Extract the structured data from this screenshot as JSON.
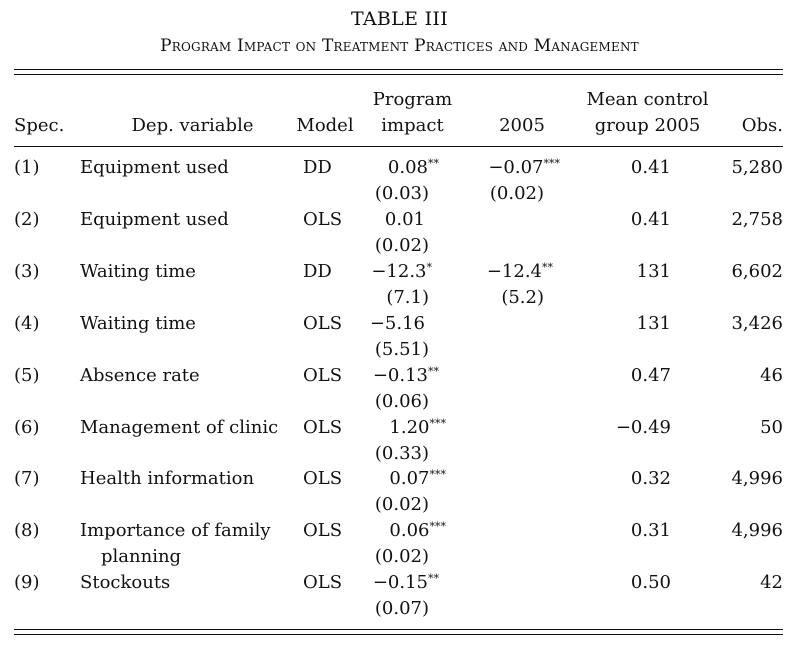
{
  "table": {
    "title": "TABLE III",
    "subtitle": "Program Impact on Treatment Practices and Management",
    "headers": {
      "spec": "Spec.",
      "dep_variable": "Dep. variable",
      "model": "Model",
      "program_line1": "Program",
      "program_line2": "impact",
      "col_2005": "2005",
      "mean_line1": "Mean control",
      "mean_line2": "group 2005",
      "obs": "Obs."
    },
    "rows": [
      {
        "spec": "(1)",
        "dep": "Equipment used",
        "dep2": "",
        "model": "DD",
        "impact": "0.08",
        "impact_stars": "**",
        "impact_se": "(0.03)",
        "c2005": "−0.07",
        "c2005_stars": "***",
        "c2005_se": "(0.02)",
        "mean": "0.41",
        "obs": "5,280"
      },
      {
        "spec": "(2)",
        "dep": "Equipment used",
        "dep2": "",
        "model": "OLS",
        "impact": "0.01",
        "impact_stars": "",
        "impact_se": "(0.02)",
        "c2005": "",
        "c2005_stars": "",
        "c2005_se": "",
        "mean": "0.41",
        "obs": "2,758"
      },
      {
        "spec": "(3)",
        "dep": "Waiting time",
        "dep2": "",
        "model": "DD",
        "impact": "−12.3",
        "impact_stars": "*",
        "impact_se": "(7.1)",
        "c2005": "−12.4",
        "c2005_stars": "**",
        "c2005_se": "(5.2)",
        "mean": "131",
        "obs": "6,602"
      },
      {
        "spec": "(4)",
        "dep": "Waiting time",
        "dep2": "",
        "model": "OLS",
        "impact": "−5.16",
        "impact_stars": "",
        "impact_se": "(5.51)",
        "c2005": "",
        "c2005_stars": "",
        "c2005_se": "",
        "mean": "131",
        "obs": "3,426"
      },
      {
        "spec": "(5)",
        "dep": "Absence rate",
        "dep2": "",
        "model": "OLS",
        "impact": "−0.13",
        "impact_stars": "**",
        "impact_se": "(0.06)",
        "c2005": "",
        "c2005_stars": "",
        "c2005_se": "",
        "mean": "0.47",
        "obs": "46"
      },
      {
        "spec": "(6)",
        "dep": "Management of clinic",
        "dep2": "",
        "model": "OLS",
        "impact": "1.20",
        "impact_stars": "***",
        "impact_se": "(0.33)",
        "c2005": "",
        "c2005_stars": "",
        "c2005_se": "",
        "mean": "−0.49",
        "obs": "50"
      },
      {
        "spec": "(7)",
        "dep": "Health information",
        "dep2": "",
        "model": "OLS",
        "impact": "0.07",
        "impact_stars": "***",
        "impact_se": "(0.02)",
        "c2005": "",
        "c2005_stars": "",
        "c2005_se": "",
        "mean": "0.32",
        "obs": "4,996"
      },
      {
        "spec": "(8)",
        "dep": "Importance of family",
        "dep2": "planning",
        "model": "OLS",
        "impact": "0.06",
        "impact_stars": "***",
        "impact_se": "(0.02)",
        "c2005": "",
        "c2005_stars": "",
        "c2005_se": "",
        "mean": "0.31",
        "obs": "4,996"
      },
      {
        "spec": "(9)",
        "dep": "Stockouts",
        "dep2": "",
        "model": "OLS",
        "impact": "−0.15",
        "impact_stars": "**",
        "impact_se": "(0.07)",
        "c2005": "",
        "c2005_stars": "",
        "c2005_se": "",
        "mean": "0.50",
        "obs": "42"
      }
    ]
  }
}
